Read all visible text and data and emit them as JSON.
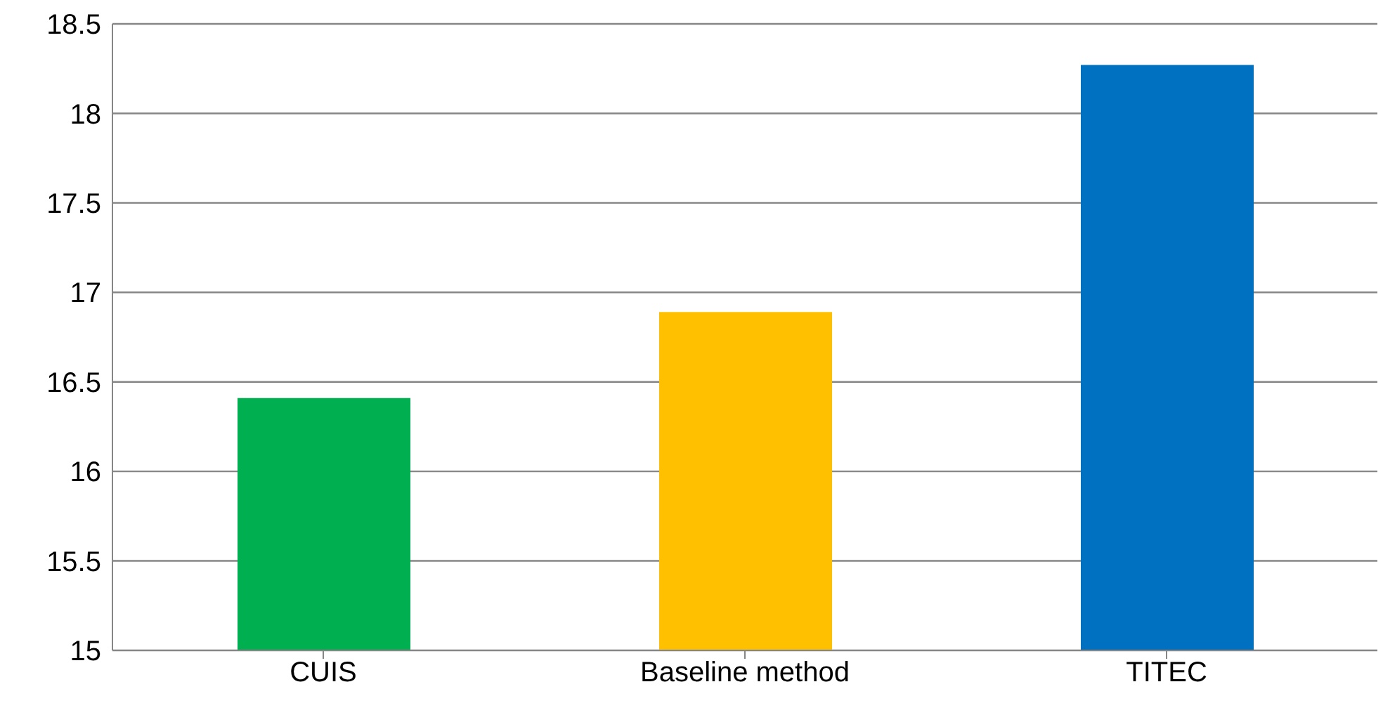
{
  "chart_data": {
    "type": "bar",
    "categories": [
      "CUIS",
      "Baseline method",
      "TITEC"
    ],
    "values": [
      16.41,
      16.89,
      18.27
    ],
    "colors": [
      "#00b050",
      "#ffc000",
      "#0070c0"
    ],
    "ylim": [
      15,
      18.5
    ],
    "yticks": [
      15,
      15.5,
      16,
      16.5,
      17,
      17.5,
      18,
      18.5
    ],
    "grid": "y"
  }
}
